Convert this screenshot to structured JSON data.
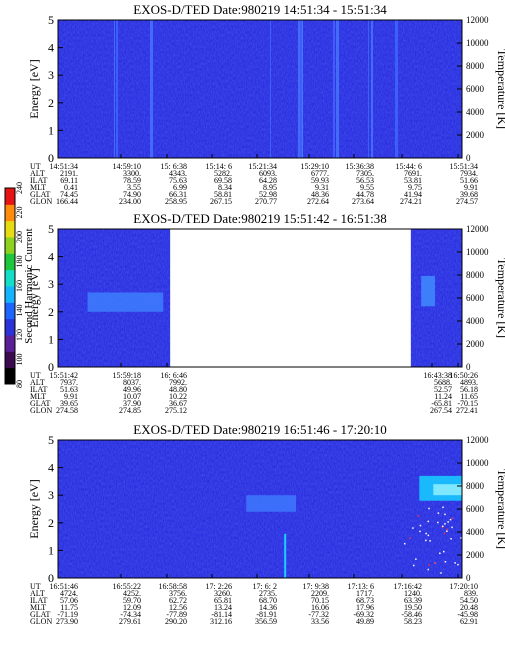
{
  "chart_data": [
    {
      "type": "heatmap",
      "title": "EXOS-D/TED",
      "date_label": "Date:980219",
      "time_range": "14:51:34 - 15:51:34",
      "ylabel": "Energy [eV]",
      "y2label": "Temperature [K]",
      "ylim": [
        0,
        5
      ],
      "yticks": [
        "0",
        "1",
        "2",
        "3",
        "4",
        "5"
      ],
      "y2lim": [
        0,
        12000
      ],
      "y2ticks": [
        "0",
        "2000",
        "4000",
        "6000",
        "8000",
        "10000",
        "12000"
      ],
      "orbit_rows": [
        "UT",
        "ALT",
        "ILAT",
        "MLT",
        "GLAT",
        "GLON"
      ],
      "orbit_columns": [
        [
          "14:51:34",
          "2191.",
          "69.11",
          "0.41",
          "74.45",
          "166.44"
        ],
        [
          "14:59:10",
          "3300.",
          "78.59",
          "3.55",
          "74.90",
          "234.00"
        ],
        [
          "15: 6:38",
          "4343.",
          "75.63",
          "6.99",
          "66.31",
          "258.95"
        ],
        [
          "15:14: 6",
          "5282.",
          "69.58",
          "8.34",
          "58.81",
          "267.15"
        ],
        [
          "15:21:34",
          "6093.",
          "64.28",
          "8.95",
          "52.98",
          "270.77"
        ],
        [
          "15:29:10",
          "6777.",
          "59.93",
          "9.31",
          "48.36",
          "272.64"
        ],
        [
          "15:36:38",
          "7305.",
          "56.53",
          "9.55",
          "44.78",
          "273.64"
        ],
        [
          "15:44: 6",
          "7691.",
          "53.81",
          "9.75",
          "41.94",
          "274.21"
        ],
        [
          "15:51:34",
          "7934.",
          "51.66",
          "9.91",
          "39.68",
          "274.57"
        ]
      ],
      "data_gaps": []
    },
    {
      "type": "heatmap",
      "title": "EXOS-D/TED",
      "date_label": "Date:980219",
      "time_range": "15:51:42 - 16:51:38",
      "ylabel": "Energy [eV]",
      "y2label": "Temperature [K]",
      "ylim": [
        0,
        5
      ],
      "yticks": [
        "0",
        "1",
        "2",
        "3",
        "4",
        "5"
      ],
      "y2lim": [
        0,
        12000
      ],
      "y2ticks": [
        "0",
        "2000",
        "4000",
        "6000",
        "8000",
        "10000",
        "12000"
      ],
      "colorbar": {
        "label": "Second Harmonic Current",
        "ticks": [
          "80",
          "100",
          "120",
          "140",
          "160",
          "180",
          "200",
          "220",
          "240"
        ],
        "colors": [
          "#000000",
          "#3c0a4e",
          "#5a1e96",
          "#2a32d8",
          "#1e64ff",
          "#14b4ff",
          "#14ddc8",
          "#1ec83c",
          "#8cd21e",
          "#e6dc14",
          "#ff8c0a",
          "#e61414"
        ]
      },
      "orbit_rows": [
        "UT",
        "ALT",
        "ILAT",
        "MLT",
        "GLAT",
        "GLON"
      ],
      "orbit_columns": [
        [
          "15:51:42",
          "7937.",
          "51.63",
          "9.91",
          "39.65",
          "274.58"
        ],
        [
          "15:59:18",
          "8037.",
          "49.96",
          "10.07",
          "37.90",
          "274.85"
        ],
        [
          "16: 6:46",
          "7992.",
          "48.80",
          "10.22",
          "36.67",
          "275.12"
        ],
        [
          "16:43:38",
          "5688.",
          "52.57",
          "11.24",
          "-65.81",
          "267.54"
        ],
        [
          "16:50:26",
          "4893.",
          "56.18",
          "11.65",
          "-70.15",
          "272.41"
        ]
      ],
      "data_gaps": [
        [
          "16:08",
          "16:43"
        ]
      ]
    },
    {
      "type": "heatmap",
      "title": "EXOS-D/TED",
      "date_label": "Date:980219",
      "time_range": "16:51:46 - 17:20:10",
      "ylabel": "Energy [eV]",
      "y2label": "Temperature [K]",
      "ylim": [
        0,
        5
      ],
      "yticks": [
        "0",
        "1",
        "2",
        "3",
        "4",
        "5"
      ],
      "y2lim": [
        0,
        12000
      ],
      "y2ticks": [
        "0",
        "2000",
        "4000",
        "6000",
        "8000",
        "10000",
        "12000"
      ],
      "orbit_rows": [
        "UT",
        "ALT",
        "ILAT",
        "MLT",
        "GLAT",
        "GLON"
      ],
      "orbit_columns": [
        [
          "16:51:46",
          "4724.",
          "57.06",
          "11.75",
          "-71.19",
          "273.90"
        ],
        [
          "16:55:22",
          "4252.",
          "59.70",
          "12.09",
          "-74.34",
          "279.61"
        ],
        [
          "16:58:58",
          "3756.",
          "62.72",
          "12.56",
          "-77.89",
          "290.20"
        ],
        [
          "17: 2:26",
          "3260.",
          "65.81",
          "13.24",
          "-81.14",
          "312.16"
        ],
        [
          "17: 6: 2",
          "2735.",
          "68.70",
          "14.36",
          "-81.91",
          "356.59"
        ],
        [
          "17: 9:38",
          "2209.",
          "70.15",
          "16.06",
          "-77.32",
          "33.56"
        ],
        [
          "17:13: 6",
          "1717.",
          "68.73",
          "17.96",
          "-69.32",
          "49.89"
        ],
        [
          "17:16:42",
          "1240.",
          "63.39",
          "19.50",
          "-58.46",
          "58.23"
        ],
        [
          "17:20:10",
          "839.",
          "54.50",
          "20.48",
          "-45.98",
          "62.91"
        ]
      ],
      "data_gaps": []
    }
  ]
}
